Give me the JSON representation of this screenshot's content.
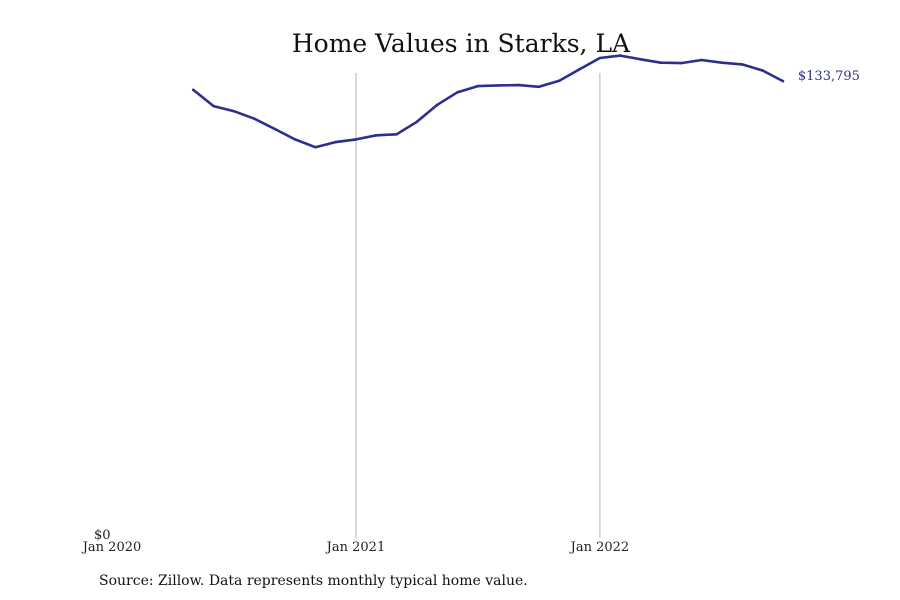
{
  "chart_data": {
    "type": "line",
    "title": "Home Values in Starks, LA",
    "source": "Source: Zillow. Data represents monthly typical home value.",
    "xlabel": "",
    "ylabel": "",
    "x_ticks": [
      "Jan 2020",
      "Jan 2021",
      "Jan 2022"
    ],
    "y_ticks": [
      "$0"
    ],
    "xlim": [
      "2020-01",
      "2022-11"
    ],
    "ylim": [
      0,
      140000
    ],
    "grid": "vertical at Jan 2021 and Jan 2022",
    "line_color": "#2e2e8f",
    "end_label": "$133,795",
    "series": [
      {
        "x": [
          "2020-05",
          "2020-06",
          "2020-07",
          "2020-08",
          "2020-09",
          "2020-10",
          "2020-11",
          "2020-12",
          "2021-01",
          "2021-02",
          "2021-03",
          "2021-04",
          "2021-05",
          "2021-06",
          "2021-07",
          "2021-08",
          "2021-09",
          "2021-10",
          "2021-11",
          "2021-12",
          "2022-01",
          "2022-02",
          "2022-03",
          "2022-04",
          "2022-05",
          "2022-06",
          "2022-07",
          "2022-08",
          "2022-09",
          "2022-10"
        ],
        "values": [
          131200,
          126400,
          124900,
          122700,
          119700,
          116600,
          114300,
          115800,
          116600,
          117800,
          118100,
          121800,
          126800,
          130500,
          132300,
          132500,
          132600,
          132100,
          133900,
          137300,
          140600,
          141300,
          140200,
          139200,
          139100,
          140000,
          139200,
          138700,
          136900,
          133795
        ]
      }
    ]
  }
}
